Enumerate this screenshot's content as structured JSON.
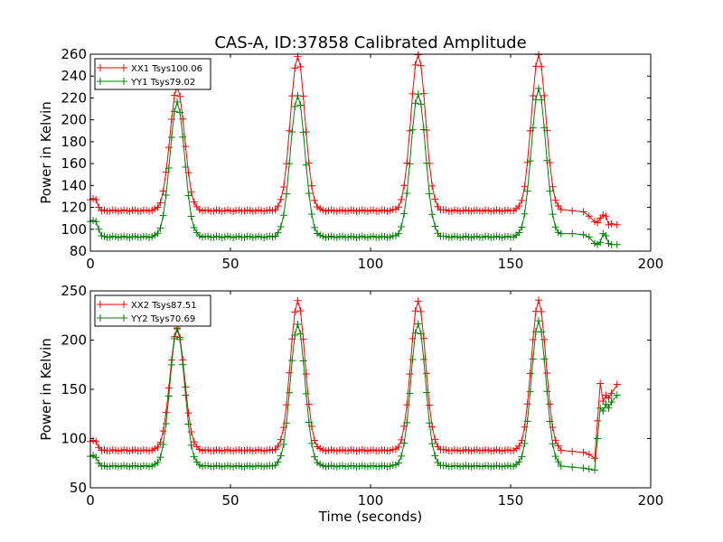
{
  "title": "CAS-A, ID:37858 Calibrated Amplitude",
  "chart_data": [
    {
      "type": "line",
      "ylabel": "Power in Kelvin",
      "xlabel": "",
      "xlim": [
        0,
        200
      ],
      "ylim": [
        80,
        260
      ],
      "x_ticks": [
        0,
        50,
        100,
        150,
        200
      ],
      "y_ticks": [
        80,
        100,
        120,
        140,
        160,
        180,
        200,
        220,
        240,
        260
      ],
      "grid": false,
      "legend_position": "top-left",
      "baseline_xx": 117,
      "baseline_yy": 93,
      "series": [
        {
          "name": "XX1 Tsys100.06",
          "color": "#ff0000",
          "peaks": [
            [
              31,
              230
            ],
            [
              74,
              258
            ],
            [
              117,
              260
            ],
            [
              160,
              259
            ]
          ],
          "start": [
            [
              0,
              127
            ],
            [
              1,
              128
            ],
            [
              2,
              127
            ],
            [
              3,
              120
            ],
            [
              4,
              117
            ]
          ],
          "end": [
            [
              168,
              118
            ],
            [
              172,
              117
            ],
            [
              176,
              116
            ],
            [
              178,
              112
            ],
            [
              180,
              107
            ],
            [
              181,
              106
            ],
            [
              182,
              110
            ],
            [
              183,
              113
            ],
            [
              184,
              112
            ],
            [
              185,
              104
            ],
            [
              186,
              105
            ],
            [
              188,
              104
            ]
          ]
        },
        {
          "name": "YY1 Tsys79.02",
          "color": "#008000",
          "peaks": [
            [
              31,
              216
            ],
            [
              74,
              222
            ],
            [
              117,
              224
            ],
            [
              160,
              228
            ]
          ],
          "start": [
            [
              0,
              107
            ],
            [
              1,
              108
            ],
            [
              2,
              107
            ],
            [
              3,
              100
            ],
            [
              4,
              94
            ]
          ],
          "end": [
            [
              168,
              96
            ],
            [
              172,
              96
            ],
            [
              176,
              95
            ],
            [
              178,
              93
            ],
            [
              180,
              87
            ],
            [
              181,
              86
            ],
            [
              182,
              88
            ],
            [
              183,
              96
            ],
            [
              184,
              94
            ],
            [
              185,
              87
            ],
            [
              186,
              86
            ],
            [
              188,
              86
            ]
          ]
        }
      ]
    },
    {
      "type": "line",
      "ylabel": "Power in Kelvin",
      "xlabel": "Time (seconds)",
      "xlim": [
        0,
        200
      ],
      "ylim": [
        50,
        250
      ],
      "x_ticks": [
        0,
        50,
        100,
        150,
        200
      ],
      "y_ticks": [
        50,
        100,
        150,
        200,
        250
      ],
      "grid": false,
      "legend_position": "top-left",
      "baseline_xx": 88,
      "baseline_yy": 72,
      "series": [
        {
          "name": "XX2 Tsys87.51",
          "color": "#ff0000",
          "peaks": [
            [
              31,
              212
            ],
            [
              74,
              240
            ],
            [
              117,
              240
            ],
            [
              160,
              240
            ]
          ],
          "start": [
            [
              0,
              97
            ],
            [
              1,
              98
            ],
            [
              2,
              97
            ],
            [
              3,
              91
            ],
            [
              4,
              88
            ]
          ],
          "end": [
            [
              168,
              88
            ],
            [
              172,
              87
            ],
            [
              176,
              86
            ],
            [
              178,
              84
            ],
            [
              180,
              80
            ],
            [
              181,
              118
            ],
            [
              182,
              156
            ],
            [
              183,
              138
            ],
            [
              184,
              144
            ],
            [
              185,
              141
            ],
            [
              186,
              146
            ],
            [
              188,
              155
            ]
          ]
        },
        {
          "name": "YY2 Tsys70.69",
          "color": "#008000",
          "peaks": [
            [
              31,
              211
            ],
            [
              74,
              216
            ],
            [
              117,
              217
            ],
            [
              160,
              219
            ]
          ],
          "start": [
            [
              0,
              82
            ],
            [
              1,
              83
            ],
            [
              2,
              81
            ],
            [
              3,
              75
            ],
            [
              4,
              72
            ]
          ],
          "end": [
            [
              168,
              72
            ],
            [
              172,
              71
            ],
            [
              176,
              70
            ],
            [
              178,
              69
            ],
            [
              180,
              68
            ],
            [
              181,
              100
            ],
            [
              182,
              131
            ],
            [
              183,
              128
            ],
            [
              184,
              135
            ],
            [
              185,
              131
            ],
            [
              186,
              137
            ],
            [
              188,
              144
            ]
          ]
        }
      ]
    }
  ]
}
